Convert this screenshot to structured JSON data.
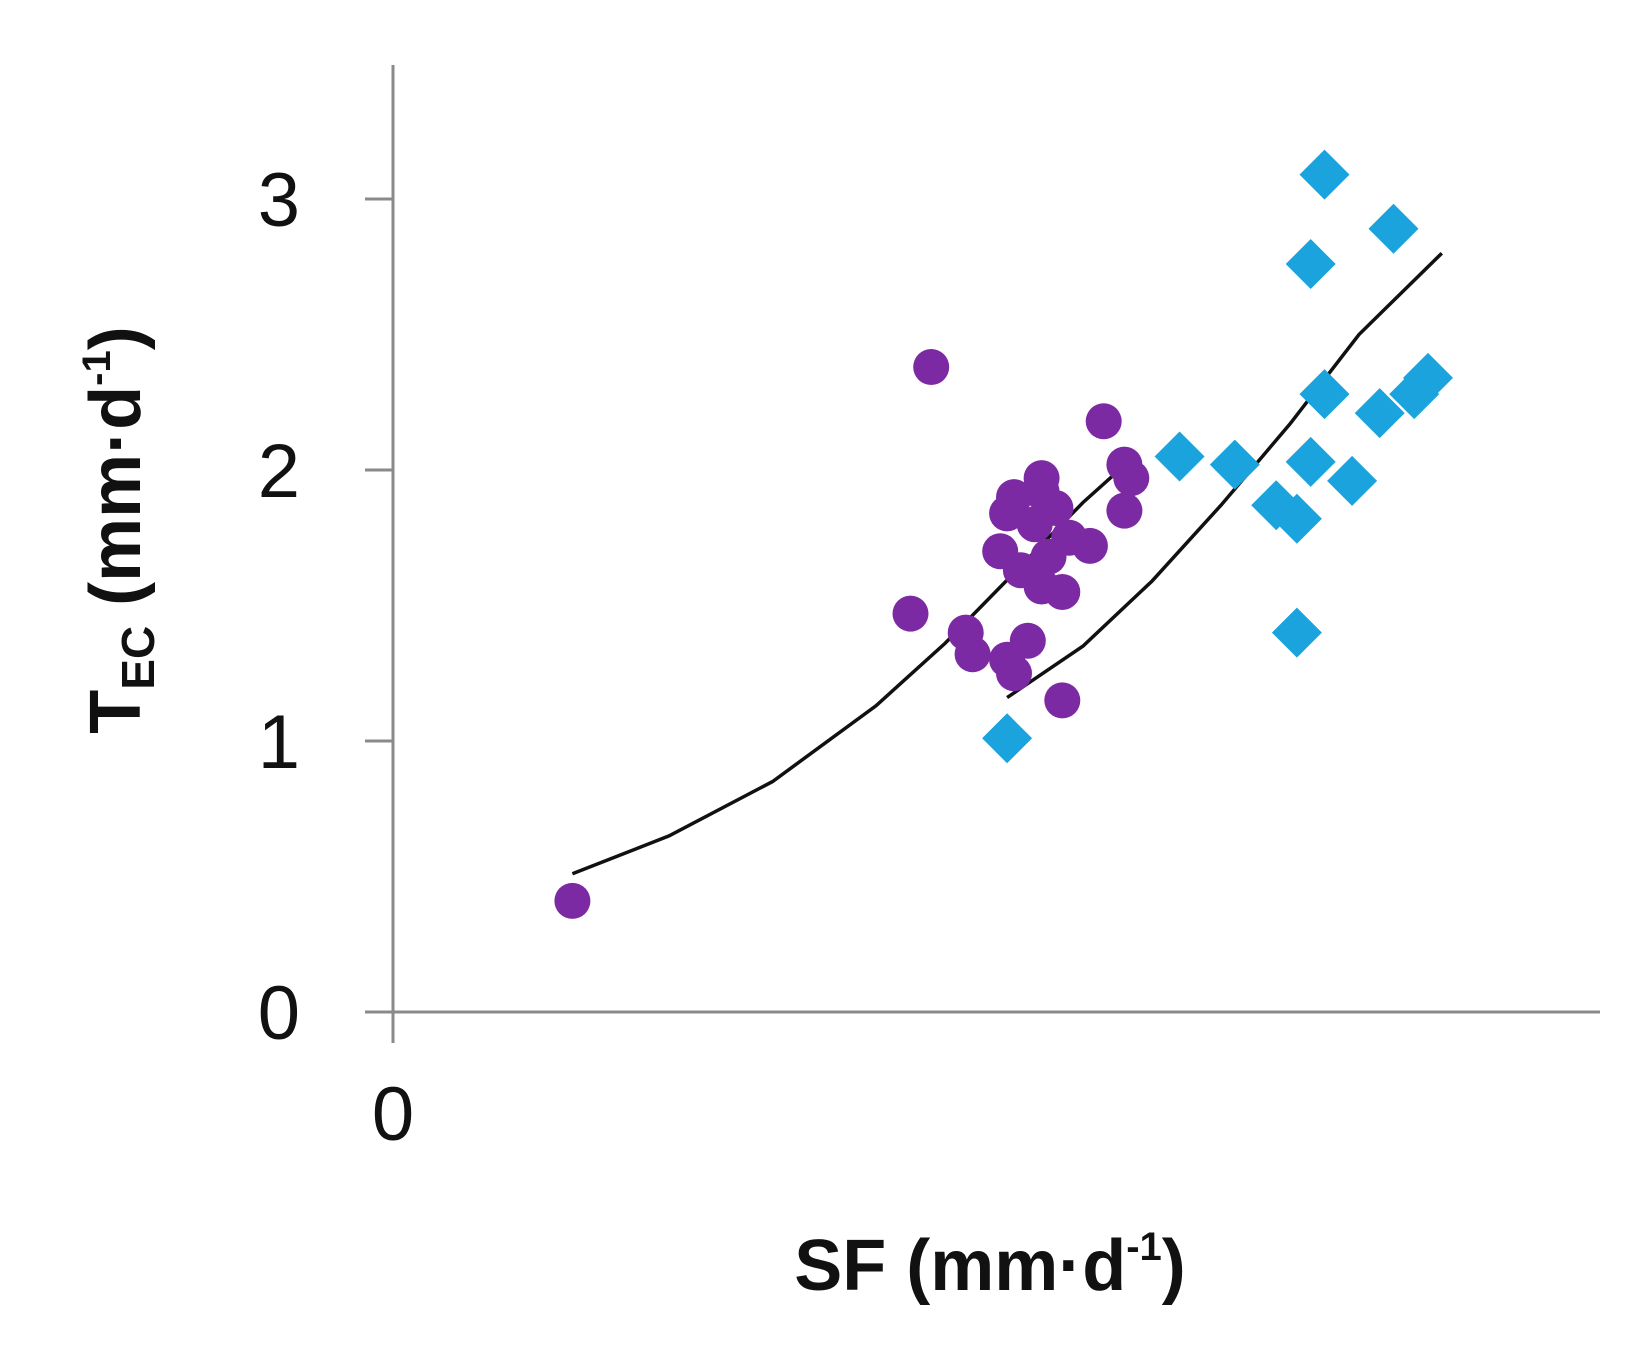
{
  "chart_data": {
    "type": "scatter",
    "xlabel": {
      "main": "SF (mm·d",
      "sup": "-1",
      "end": ")"
    },
    "ylabel": {
      "main": "T",
      "sub": "EC",
      "rest": " (mm·d",
      "sup": "-1",
      "end": ")"
    },
    "xlim": [
      0,
      3.5
    ],
    "ylim": [
      0,
      3.5
    ],
    "x_ticks": [
      0,
      2
    ],
    "y_ticks": [
      0,
      1,
      2,
      3
    ],
    "grid": false,
    "legend": "none",
    "series": [
      {
        "marker": "circle",
        "color": "#7b2aa3",
        "points": [
          {
            "x": 0.26,
            "y": 0.41
          },
          {
            "x": 0.78,
            "y": 2.38
          },
          {
            "x": 1.03,
            "y": 2.18
          },
          {
            "x": 1.06,
            "y": 2.02
          },
          {
            "x": 1.07,
            "y": 1.97
          },
          {
            "x": 0.94,
            "y": 1.97
          },
          {
            "x": 0.94,
            "y": 1.92
          },
          {
            "x": 0.9,
            "y": 1.9
          },
          {
            "x": 0.96,
            "y": 1.86
          },
          {
            "x": 0.89,
            "y": 1.84
          },
          {
            "x": 1.06,
            "y": 1.85
          },
          {
            "x": 0.93,
            "y": 1.8
          },
          {
            "x": 0.98,
            "y": 1.75
          },
          {
            "x": 1.01,
            "y": 1.72
          },
          {
            "x": 0.88,
            "y": 1.7
          },
          {
            "x": 0.95,
            "y": 1.68
          },
          {
            "x": 0.91,
            "y": 1.63
          },
          {
            "x": 0.94,
            "y": 1.57
          },
          {
            "x": 0.97,
            "y": 1.55
          },
          {
            "x": 0.75,
            "y": 1.47
          },
          {
            "x": 0.83,
            "y": 1.4
          },
          {
            "x": 0.92,
            "y": 1.37
          },
          {
            "x": 0.84,
            "y": 1.32
          },
          {
            "x": 0.89,
            "y": 1.3
          },
          {
            "x": 0.9,
            "y": 1.25
          },
          {
            "x": 0.97,
            "y": 1.15
          }
        ],
        "trendline": [
          {
            "x": 0.26,
            "y": 0.51
          },
          {
            "x": 0.4,
            "y": 0.65
          },
          {
            "x": 0.55,
            "y": 0.85
          },
          {
            "x": 0.7,
            "y": 1.13
          },
          {
            "x": 0.8,
            "y": 1.36
          },
          {
            "x": 0.9,
            "y": 1.62
          },
          {
            "x": 1.0,
            "y": 1.88
          },
          {
            "x": 1.07,
            "y": 2.04
          }
        ]
      },
      {
        "marker": "diamond",
        "color": "#1aa3dc",
        "points": [
          {
            "x": 1.35,
            "y": 3.09
          },
          {
            "x": 1.45,
            "y": 2.89
          },
          {
            "x": 1.33,
            "y": 2.76
          },
          {
            "x": 1.5,
            "y": 2.34
          },
          {
            "x": 1.35,
            "y": 2.28
          },
          {
            "x": 1.48,
            "y": 2.28
          },
          {
            "x": 1.43,
            "y": 2.21
          },
          {
            "x": 1.14,
            "y": 2.05
          },
          {
            "x": 1.22,
            "y": 2.02
          },
          {
            "x": 1.33,
            "y": 2.03
          },
          {
            "x": 1.39,
            "y": 1.96
          },
          {
            "x": 1.28,
            "y": 1.87
          },
          {
            "x": 1.31,
            "y": 1.82
          },
          {
            "x": 1.31,
            "y": 1.4
          },
          {
            "x": 0.89,
            "y": 1.01
          }
        ],
        "trendline": [
          {
            "x": 0.89,
            "y": 1.16
          },
          {
            "x": 1.0,
            "y": 1.35
          },
          {
            "x": 1.1,
            "y": 1.59
          },
          {
            "x": 1.2,
            "y": 1.87
          },
          {
            "x": 1.3,
            "y": 2.17
          },
          {
            "x": 1.4,
            "y": 2.5
          },
          {
            "x": 1.52,
            "y": 2.8
          }
        ]
      }
    ]
  }
}
